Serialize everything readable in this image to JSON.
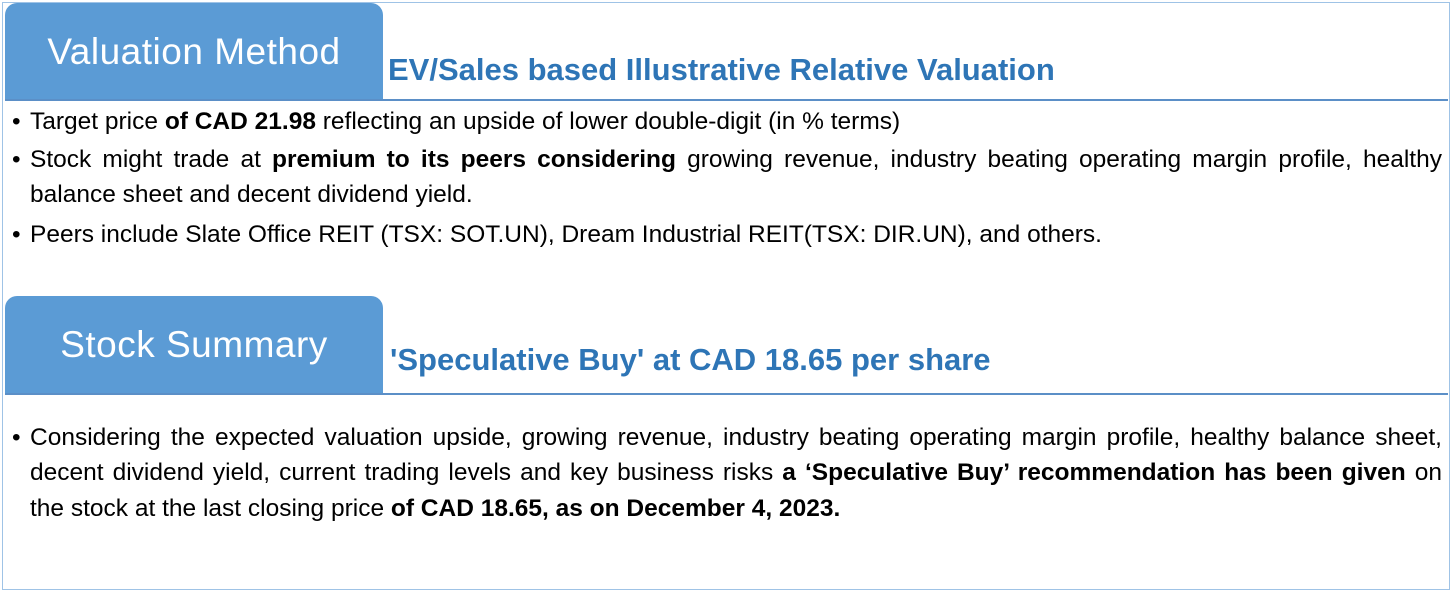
{
  "valuation": {
    "tab_label": "Valuation Method",
    "heading": "EV/Sales based Illustrative Relative Valuation",
    "bullets": {
      "b1": {
        "p1": "Target price ",
        "b1": "of CAD 21.98",
        "p2": " reflecting an upside of lower double-digit (in % terms)"
      },
      "b2": {
        "p1": "Stock might trade at ",
        "b1": "premium to its peers considering",
        "p2": " growing revenue, industry beating operating margin profile, healthy balance sheet and decent dividend yield."
      },
      "b3": {
        "p1": "Peers include Slate Office REIT (TSX: SOT.UN), Dream Industrial REIT(TSX: DIR.UN), and others."
      }
    }
  },
  "summary": {
    "tab_label": "Stock Summary",
    "heading": "'Speculative Buy' at CAD 18.65 per share",
    "bullet": {
      "p1": "Considering the expected valuation upside, growing revenue, industry beating operating margin profile, healthy balance sheet, decent dividend yield, current trading levels and key business risks ",
      "b1": "a ‘Speculative Buy’ recommendation has been given",
      "p2": " on the stock at the last closing price ",
      "b2": "of CAD 18.65, as on December 4, 2023."
    }
  },
  "bullet_glyph": "•",
  "colors": {
    "tab": "#5b9bd5",
    "heading": "#2e75b6",
    "border": "#9fc3e6"
  }
}
